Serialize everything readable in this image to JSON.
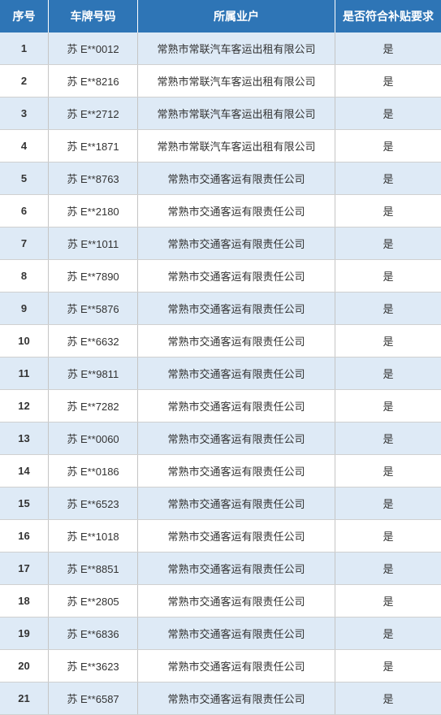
{
  "table": {
    "header_bg": "#2e75b6",
    "header_text_color": "#ffffff",
    "row_even_bg": "#deeaf6",
    "row_odd_bg": "#ffffff",
    "border_color": "#c5c5c5",
    "columns": {
      "seq": "序号",
      "plate": "车牌号码",
      "company": "所属业户",
      "eligible": "是否符合补贴要求"
    },
    "rows": [
      {
        "seq": "1",
        "plate": "苏 E**0012",
        "company": "常熟市常联汽车客运出租有限公司",
        "eligible": "是"
      },
      {
        "seq": "2",
        "plate": "苏 E**8216",
        "company": "常熟市常联汽车客运出租有限公司",
        "eligible": "是"
      },
      {
        "seq": "3",
        "plate": "苏 E**2712",
        "company": "常熟市常联汽车客运出租有限公司",
        "eligible": "是"
      },
      {
        "seq": "4",
        "plate": "苏 E**1871",
        "company": "常熟市常联汽车客运出租有限公司",
        "eligible": "是"
      },
      {
        "seq": "5",
        "plate": "苏 E**8763",
        "company": "常熟市交通客运有限责任公司",
        "eligible": "是"
      },
      {
        "seq": "6",
        "plate": "苏 E**2180",
        "company": "常熟市交通客运有限责任公司",
        "eligible": "是"
      },
      {
        "seq": "7",
        "plate": "苏 E**1011",
        "company": "常熟市交通客运有限责任公司",
        "eligible": "是"
      },
      {
        "seq": "8",
        "plate": "苏 E**7890",
        "company": "常熟市交通客运有限责任公司",
        "eligible": "是"
      },
      {
        "seq": "9",
        "plate": "苏 E**5876",
        "company": "常熟市交通客运有限责任公司",
        "eligible": "是"
      },
      {
        "seq": "10",
        "plate": "苏 E**6632",
        "company": "常熟市交通客运有限责任公司",
        "eligible": "是"
      },
      {
        "seq": "11",
        "plate": "苏 E**9811",
        "company": "常熟市交通客运有限责任公司",
        "eligible": "是"
      },
      {
        "seq": "12",
        "plate": "苏 E**7282",
        "company": "常熟市交通客运有限责任公司",
        "eligible": "是"
      },
      {
        "seq": "13",
        "plate": "苏 E**0060",
        "company": "常熟市交通客运有限责任公司",
        "eligible": "是"
      },
      {
        "seq": "14",
        "plate": "苏 E**0186",
        "company": "常熟市交通客运有限责任公司",
        "eligible": "是"
      },
      {
        "seq": "15",
        "plate": "苏 E**6523",
        "company": "常熟市交通客运有限责任公司",
        "eligible": "是"
      },
      {
        "seq": "16",
        "plate": "苏 E**1018",
        "company": "常熟市交通客运有限责任公司",
        "eligible": "是"
      },
      {
        "seq": "17",
        "plate": "苏 E**8851",
        "company": "常熟市交通客运有限责任公司",
        "eligible": "是"
      },
      {
        "seq": "18",
        "plate": "苏 E**2805",
        "company": "常熟市交通客运有限责任公司",
        "eligible": "是"
      },
      {
        "seq": "19",
        "plate": "苏 E**6836",
        "company": "常熟市交通客运有限责任公司",
        "eligible": "是"
      },
      {
        "seq": "20",
        "plate": "苏 E**3623",
        "company": "常熟市交通客运有限责任公司",
        "eligible": "是"
      },
      {
        "seq": "21",
        "plate": "苏 E**6587",
        "company": "常熟市交通客运有限责任公司",
        "eligible": "是"
      }
    ]
  }
}
